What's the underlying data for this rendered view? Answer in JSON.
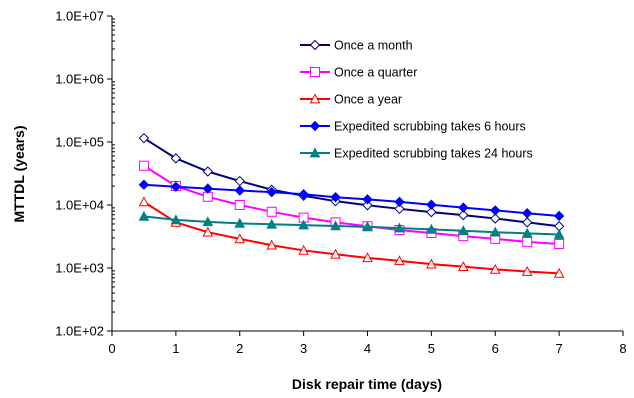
{
  "chart_data": {
    "type": "line",
    "xlabel": "Disk repair time (days)",
    "ylabel": "MTTDL (years)",
    "xlim": [
      0,
      8
    ],
    "ylim": [
      100,
      10000000
    ],
    "y_scale": "log",
    "x_ticks": [
      0,
      1,
      2,
      3,
      4,
      5,
      6,
      7,
      8
    ],
    "x_tick_labels": [
      "0",
      "1",
      "2",
      "3",
      "4",
      "5",
      "6",
      "7",
      "8"
    ],
    "y_ticks": [
      100,
      1000,
      10000,
      100000,
      1000000,
      10000000
    ],
    "y_tick_labels": [
      "1.0E+02",
      "1.0E+03",
      "1.0E+04",
      "1.0E+05",
      "1.0E+06",
      "1.0E+07"
    ],
    "grid": false,
    "legend_position": "top-right",
    "x": [
      0.5,
      1,
      1.5,
      2,
      2.5,
      3,
      3.5,
      4,
      4.5,
      5,
      5.5,
      6,
      6.5,
      7
    ],
    "series": [
      {
        "name": "Once a month",
        "color": "#000080",
        "marker": "diamond-open",
        "values": [
          115000,
          55000,
          34000,
          24000,
          17500,
          14000,
          11500,
          9900,
          8700,
          7700,
          6900,
          6100,
          5300,
          4600
        ]
      },
      {
        "name": "Once a quarter",
        "color": "#ff00ff",
        "marker": "square-open",
        "values": [
          42000,
          20000,
          13500,
          10000,
          7800,
          6300,
          5300,
          4600,
          4000,
          3600,
          3200,
          2900,
          2600,
          2400
        ]
      },
      {
        "name": "Once a year",
        "color": "#ff0000",
        "marker": "triangle-open",
        "values": [
          11200,
          5300,
          3700,
          2900,
          2300,
          1900,
          1650,
          1450,
          1300,
          1150,
          1050,
          950,
          880,
          820
        ]
      },
      {
        "name": "Expedited scrubbing takes 6 hours",
        "color": "#0000ff",
        "marker": "diamond-filled",
        "values": [
          21000,
          19500,
          18200,
          17000,
          16000,
          14800,
          13300,
          12300,
          11200,
          10100,
          9100,
          8200,
          7400,
          6700
        ]
      },
      {
        "name": "Expedited scrubbing takes 24 hours",
        "color": "#008080",
        "marker": "triangle-filled",
        "values": [
          6600,
          5800,
          5400,
          5100,
          4950,
          4800,
          4650,
          4500,
          4300,
          4100,
          3900,
          3700,
          3550,
          3400
        ]
      }
    ]
  }
}
